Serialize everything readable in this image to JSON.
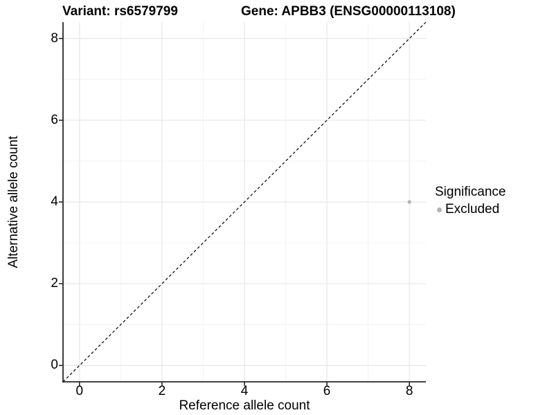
{
  "chart_data": {
    "type": "scatter",
    "title_left": "Variant: rs6579799",
    "title_right": "Gene: APBB3 (ENSG00000113108)",
    "xlabel": "Reference allele count",
    "ylabel": "Alternative allele count",
    "xlim": [
      -0.4,
      8.4
    ],
    "ylim": [
      -0.4,
      8.4
    ],
    "x_ticks": [
      0,
      2,
      4,
      6,
      8
    ],
    "y_ticks": [
      0,
      2,
      4,
      6,
      8
    ],
    "x_minor": [
      1,
      3,
      5,
      7
    ],
    "y_minor": [
      1,
      3,
      5,
      7
    ],
    "grid": "major+minor",
    "identity_line": {
      "type": "abline",
      "slope": 1,
      "intercept": 0,
      "style": "dashed",
      "color": "#000000"
    },
    "series": [
      {
        "name": "Excluded",
        "color": "#b3b3b3",
        "point_radius": 2.6,
        "points": [
          {
            "x": 8,
            "y": 4
          }
        ]
      }
    ],
    "legend": {
      "title": "Significance",
      "position": "right",
      "entries": [
        {
          "label": "Excluded",
          "color": "#b3b3b3"
        }
      ]
    },
    "colors": {
      "background": "#ffffff",
      "grid_major": "#e7e7e7",
      "grid_minor": "#f3f3f3",
      "axis": "#262626",
      "text": "#000000"
    }
  }
}
